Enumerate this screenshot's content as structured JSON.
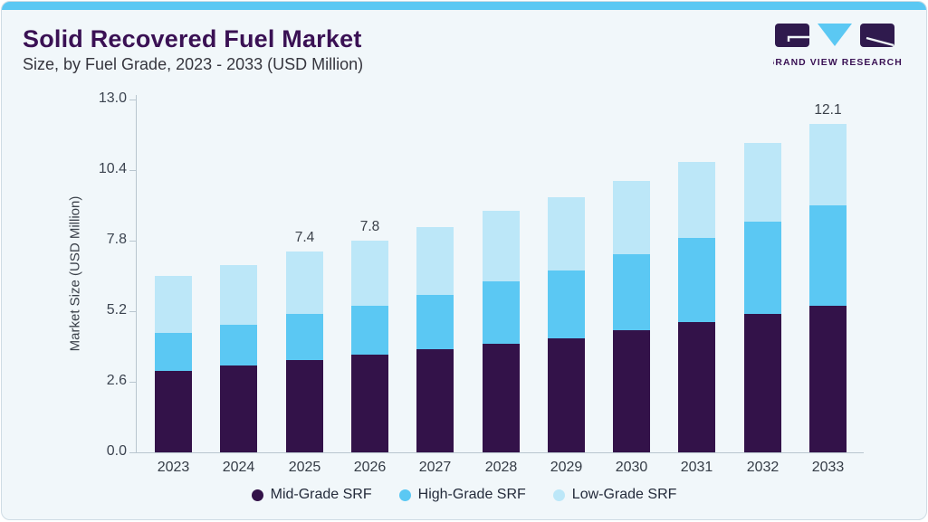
{
  "header": {
    "title": "Solid Recovered Fuel Market",
    "subtitle": "Size, by Fuel Grade, 2023 - 2033 (USD Million)",
    "logo_text": "GRAND VIEW RESEARCH"
  },
  "colors": {
    "accent_strip": "#5BC8F3",
    "title_purple": "#3A1154",
    "mid_grade": "#331249",
    "high_grade": "#5BC8F3",
    "low_grade": "#BCE7F8",
    "card_background": "#F1F7FA",
    "axis_gray": "#B9C6CF"
  },
  "chart_data": {
    "type": "bar",
    "stacked": true,
    "title": "Solid Recovered Fuel Market Size, by Fuel Grade, 2023 - 2033 (USD Million)",
    "ylabel": "Market Size (USD Million)",
    "ylim": [
      0,
      13.0
    ],
    "ytick_labels": [
      "0.0",
      "2.6",
      "5.2",
      "7.8",
      "10.4",
      "13.0"
    ],
    "grid": false,
    "legend_position": "bottom",
    "categories": [
      "2023",
      "2024",
      "2025",
      "2026",
      "2027",
      "2028",
      "2029",
      "2030",
      "2031",
      "2032",
      "2033"
    ],
    "series": [
      {
        "name": "Mid-Grade SRF",
        "color": "#331249",
        "values": [
          3.0,
          3.2,
          3.4,
          3.6,
          3.8,
          4.0,
          4.2,
          4.5,
          4.8,
          5.1,
          5.4
        ]
      },
      {
        "name": "High-Grade SRF",
        "color": "#5BC8F3",
        "values": [
          1.4,
          1.5,
          1.7,
          1.8,
          2.0,
          2.3,
          2.5,
          2.8,
          3.1,
          3.4,
          3.7
        ]
      },
      {
        "name": "Low-Grade SRF",
        "color": "#BCE7F8",
        "values": [
          2.1,
          2.2,
          2.3,
          2.4,
          2.5,
          2.6,
          2.7,
          2.7,
          2.8,
          2.9,
          3.0
        ]
      }
    ],
    "totals_estimated": [
      6.5,
      6.9,
      7.4,
      7.8,
      8.3,
      8.9,
      9.4,
      10.0,
      10.7,
      11.4,
      12.1
    ],
    "total_labels": [
      "",
      "",
      "7.4",
      "7.8",
      "",
      "",
      "",
      "",
      "",
      "",
      "12.1"
    ]
  }
}
